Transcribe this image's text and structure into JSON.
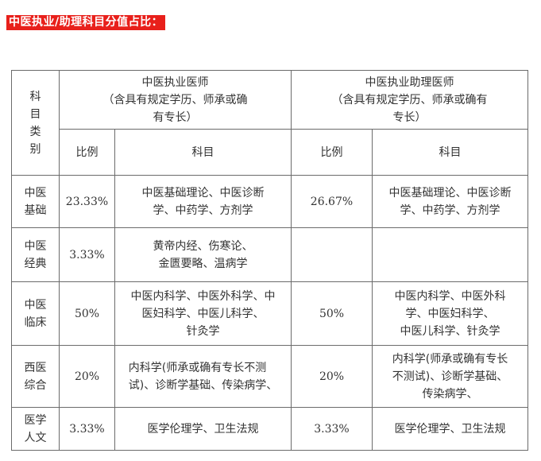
{
  "heading": "中医执业/助理科目分值占比：",
  "table": {
    "corner_lines": [
      "科",
      "目",
      "类",
      "别"
    ],
    "group1": {
      "title": "中医执业医师",
      "note_line1": "（含具有规定学历、师承或确",
      "note_line2": "有专长）"
    },
    "group2": {
      "title": "中医执业助理医师",
      "note_line1": "（含具有规定学历、师承或确有",
      "note_line2": "专长）"
    },
    "col_ratio": "比例",
    "col_subject": "科目",
    "rows": [
      {
        "category": [
          "中医",
          "基础"
        ],
        "p1": "23.33%",
        "s1": [
          "中医基础理论、中医诊断",
          "学、中药学、方剂学"
        ],
        "p2": "26.67%",
        "s2": [
          "中医基础理论、中医诊断",
          "学、中药学、方剂学"
        ]
      },
      {
        "category": [
          "中医",
          "经典"
        ],
        "p1": "3.33%",
        "s1": [
          "黄帝内经、伤寒论、",
          "金匮要略、温病学"
        ],
        "p2": "",
        "s2": []
      },
      {
        "category": [
          "中医",
          "临床"
        ],
        "p1": "50%",
        "s1": [
          "中医内科学、中医外科学、中",
          "医妇科学、中医儿科学、",
          "针灸学"
        ],
        "p2": "50%",
        "s2": [
          "中医内科学、中医外科",
          "学、中医妇科学、",
          "中医儿科学、针灸学"
        ]
      },
      {
        "category": [
          "西医",
          "综合"
        ],
        "p1": "20%",
        "s1": [
          "内科学(师承或确有专长不测",
          "试)、诊断学基础、传染病学、"
        ],
        "p2": "20%",
        "s2": [
          "内科学(师承或确有专长",
          "不测试)、诊断学基础、",
          "传染病学、"
        ]
      },
      {
        "category": [
          "医学",
          "人文"
        ],
        "p1": "3.33%",
        "s1": [
          "医学伦理学、卫生法规"
        ],
        "p2": "3.33%",
        "s2": [
          "医学伦理学、卫生法规"
        ]
      }
    ]
  }
}
